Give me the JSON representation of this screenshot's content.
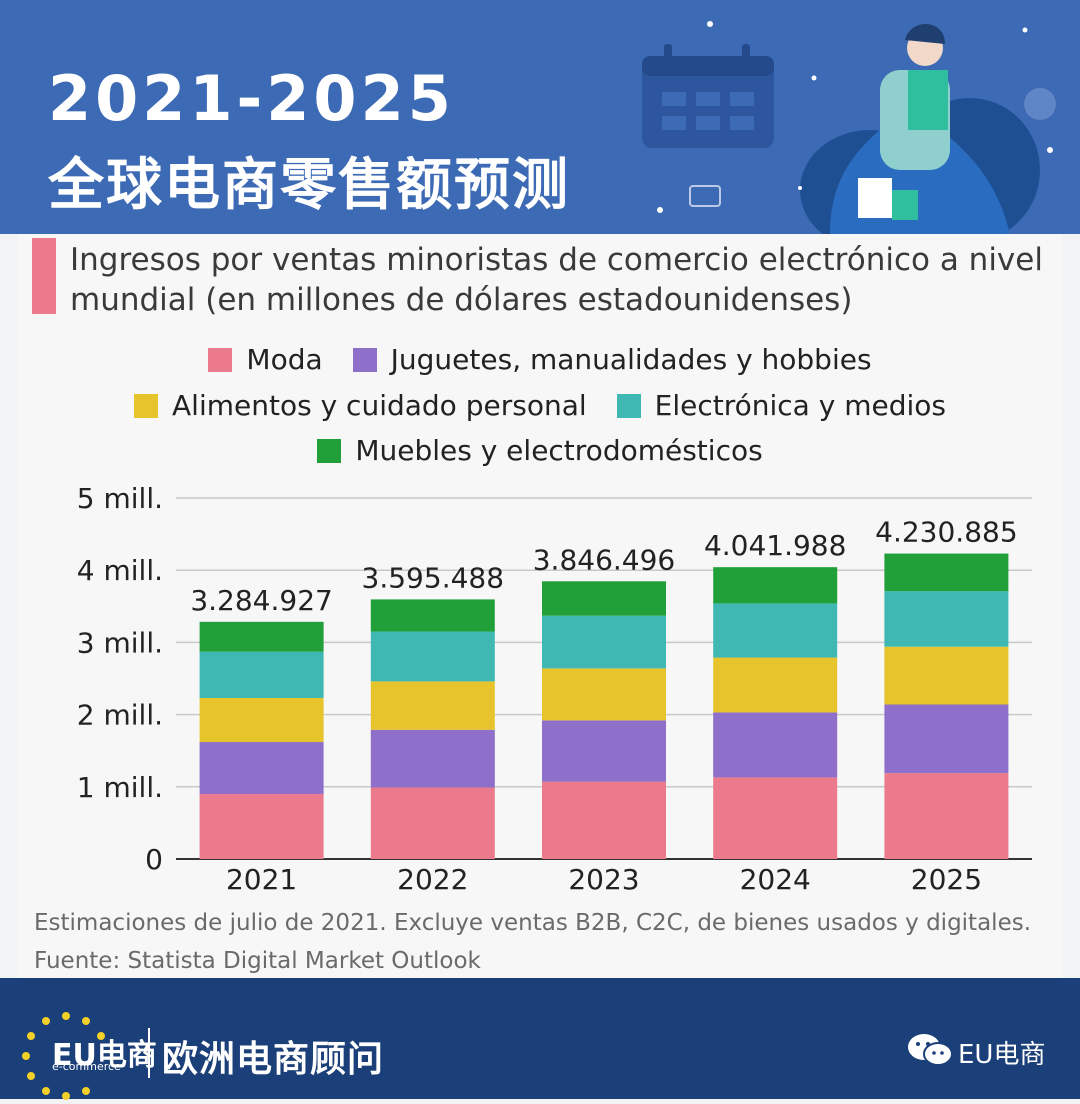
{
  "header": {
    "title_years": "2021-2025",
    "title_cn": "全球电商零售额预测"
  },
  "subtitle": "Ingresos por ventas minoristas de comercio electrónico a nivel mundial (en millones de dólares estadounidenses)",
  "legend": [
    {
      "label": "Moda",
      "color": "#eb7a8c"
    },
    {
      "label": "Juguetes, manualidades y hobbies",
      "color": "#8e6fc9"
    },
    {
      "label": "Alimentos y cuidado personal",
      "color": "#e8c42c"
    },
    {
      "label": "Electrónica y medios",
      "color": "#3fb8b4"
    },
    {
      "label": "Muebles y electrodomésticos",
      "color": "#21a03a"
    }
  ],
  "chart_data": {
    "type": "bar",
    "stacked": true,
    "categories": [
      "2021",
      "2022",
      "2023",
      "2024",
      "2025"
    ],
    "totals": [
      3284927,
      3595488,
      3846496,
      4041988,
      4230885
    ],
    "total_labels": [
      "3.284.927",
      "3.595.488",
      "3.846.496",
      "4.041.988",
      "4.230.885"
    ],
    "series": [
      {
        "name": "Moda",
        "values": [
          900000,
          990000,
          1070000,
          1130000,
          1190000
        ]
      },
      {
        "name": "Juguetes, manualidades y hobbies",
        "values": [
          720000,
          800000,
          850000,
          900000,
          950000
        ]
      },
      {
        "name": "Alimentos y cuidado personal",
        "values": [
          610000,
          670000,
          720000,
          760000,
          800000
        ]
      },
      {
        "name": "Electrónica y medios",
        "values": [
          640000,
          690000,
          730000,
          750000,
          770000
        ]
      },
      {
        "name": "Muebles y electrodomésticos",
        "values": [
          414927,
          445488,
          476496,
          501988,
          520885
        ]
      }
    ],
    "ylim": [
      0,
      5000000
    ],
    "yticks": [
      {
        "value": 0,
        "label": "0"
      },
      {
        "value": 1000000,
        "label": "1 mill."
      },
      {
        "value": 2000000,
        "label": "2 mill."
      },
      {
        "value": 3000000,
        "label": "3 mill."
      },
      {
        "value": 4000000,
        "label": "4 mill."
      },
      {
        "value": 5000000,
        "label": "5 mill."
      }
    ],
    "grid": true
  },
  "footnote": {
    "note": "Estimaciones de julio de 2021. Excluye ventas B2B, C2C, de bienes usados y digitales.",
    "source": "Fuente: Statista Digital Market Outlook"
  },
  "footer": {
    "logo_text": "EU电商",
    "logo_sub": "e-commerce",
    "brand": "欧洲电商顾问",
    "wechat_label": "EU电商"
  }
}
